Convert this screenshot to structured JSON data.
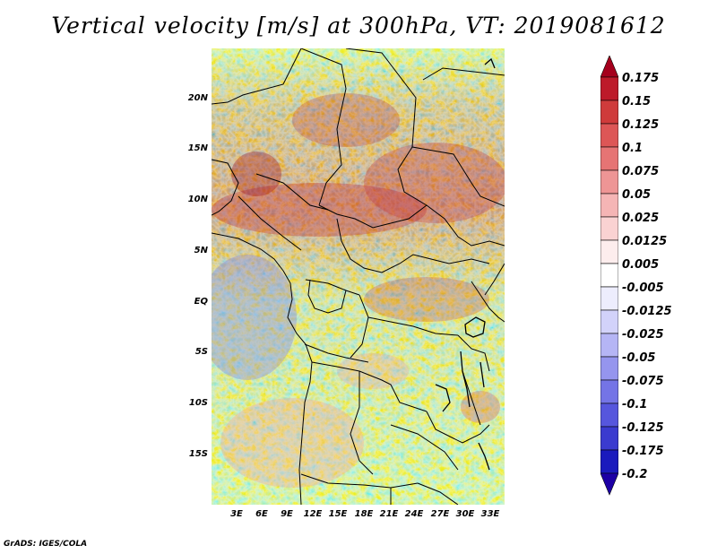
{
  "title": "Vertical velocity [m/s] at 300hPa, VT: 2019081612",
  "credit": "GrADS: IGES/COLA",
  "map": {
    "lat_labels": [
      "20N",
      "15N",
      "10N",
      "5N",
      "EQ",
      "5S",
      "10S",
      "15S"
    ],
    "lon_labels": [
      "3E",
      "6E",
      "9E",
      "12E",
      "15E",
      "18E",
      "21E",
      "24E",
      "27E",
      "30E",
      "33E"
    ]
  },
  "colorbar": {
    "labels": [
      "0.175",
      "0.15",
      "0.125",
      "0.1",
      "0.075",
      "0.05",
      "0.025",
      "0.0125",
      "0.005",
      "-0.005",
      "-0.0125",
      "-0.025",
      "-0.05",
      "-0.075",
      "-0.1",
      "-0.125",
      "-0.175",
      "-0.2"
    ],
    "colors": [
      "#a5001d",
      "#bd1a2a",
      "#cf3b3b",
      "#dd5656",
      "#e67474",
      "#ee9595",
      "#f5b5b5",
      "#fad2d2",
      "#fdeded",
      "#ffffff",
      "#ededfd",
      "#d2d2fa",
      "#b5b5f5",
      "#9595ee",
      "#7474e6",
      "#5656dd",
      "#3b3bcf",
      "#1a1abd",
      "#1d00a5"
    ]
  }
}
